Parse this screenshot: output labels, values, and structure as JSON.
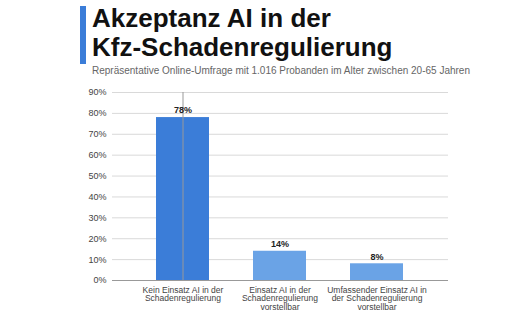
{
  "chart_data": {
    "type": "bar",
    "title": "Akzeptanz AI in der Kfz-Schadenregulierung",
    "subtitle": "Repräsentative Online-Umfrage mit 1.016 Probanden im Alter zwischen 20-65 Jahren",
    "categories": [
      "Kein Einsatz AI in der Schadenregulierung",
      "Einsatz AI in der Schadenregulierung vorstellbar",
      "Umfassender Einsatz AI in der Schadenregulierung vorstellbar"
    ],
    "values": [
      78,
      14,
      8
    ],
    "value_labels": [
      "78%",
      "14%",
      "8%"
    ],
    "colors": [
      "#3b7dd8",
      "#6aa3e6",
      "#6aa3e6"
    ],
    "ylim": [
      0,
      90
    ],
    "yticks": [
      {
        "value": 0,
        "label": "0%"
      },
      {
        "value": 10,
        "label": "10%"
      },
      {
        "value": 20,
        "label": "20%"
      },
      {
        "value": 30,
        "label": "30%"
      },
      {
        "value": 40,
        "label": "40%"
      },
      {
        "value": 50,
        "label": "50%"
      },
      {
        "value": 60,
        "label": "60%"
      },
      {
        "value": 70,
        "label": "70%"
      },
      {
        "value": 80,
        "label": "80%"
      },
      {
        "value": 90,
        "label": "90%"
      }
    ],
    "grid": true,
    "data_labels": true
  }
}
